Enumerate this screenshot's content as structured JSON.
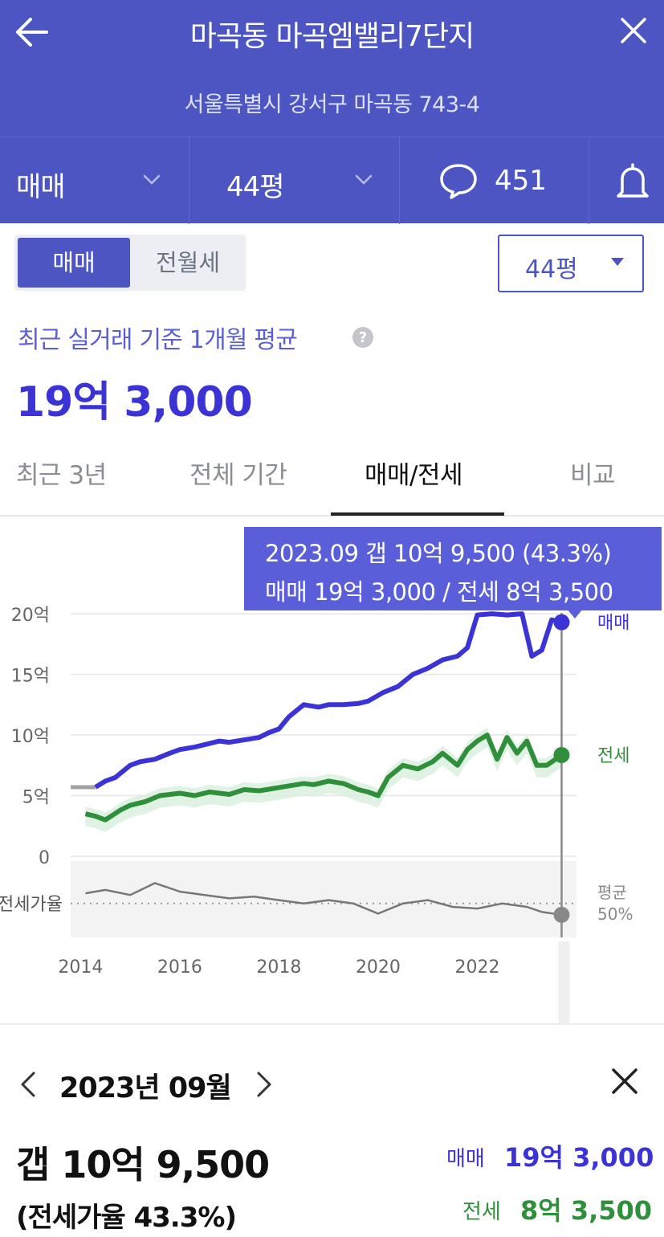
{
  "header": {
    "title": "마곡동 마곡엠밸리7단지",
    "address": "서울특별시 강서구 마곡동 743-4",
    "deal_type": "매매",
    "size": "44평",
    "comment_count": "451"
  },
  "controls": {
    "segment_active": "매매",
    "segment_inactive": "전월세",
    "size_select": "44평"
  },
  "summary": {
    "basis_label": "최근 실거래 기준 1개월 평균",
    "price": "19억 3,000"
  },
  "tabs": [
    {
      "label": "최근 3년",
      "active": false
    },
    {
      "label": "전체 기간",
      "active": false
    },
    {
      "label": "매매/전세",
      "active": true
    },
    {
      "label": "비교",
      "active": false
    }
  ],
  "tooltip": {
    "line1": "2023.09  갭 10억 9,500 (43.3%)",
    "line2": "매매 19억 3,000 / 전세 8억 3,500"
  },
  "colors": {
    "brand": "#4c55c2",
    "sale": "#3c33d6",
    "jeonse": "#2f8f3a",
    "ratio": "#777777"
  },
  "chart_data": {
    "type": "line",
    "ylabel": "",
    "y_ticks": [
      "20억",
      "15억",
      "10억",
      "5억",
      "0"
    ],
    "y_tick_values": [
      20,
      15,
      10,
      5,
      0
    ],
    "ylim": [
      0,
      21
    ],
    "x_ticks": [
      "2014",
      "2016",
      "2018",
      "2020",
      "2022"
    ],
    "x_tick_values": [
      2014,
      2016,
      2018,
      2020,
      2022
    ],
    "xlim": [
      2013.8,
      2024
    ],
    "series": [
      {
        "name": "매매",
        "unit": "억",
        "x": [
          2014.3,
          2014.5,
          2014.7,
          2015.0,
          2015.2,
          2015.5,
          2015.8,
          2016.0,
          2016.3,
          2016.5,
          2016.8,
          2017.0,
          2017.3,
          2017.6,
          2017.8,
          2018.0,
          2018.2,
          2018.5,
          2018.8,
          2019.0,
          2019.3,
          2019.6,
          2019.8,
          2020.1,
          2020.4,
          2020.7,
          2021.0,
          2021.3,
          2021.6,
          2021.8,
          2022.0,
          2022.3,
          2022.6,
          2022.9,
          2023.1,
          2023.3,
          2023.5,
          2023.7
        ],
        "values": [
          5.7,
          6.2,
          6.5,
          7.5,
          7.8,
          8.0,
          8.5,
          8.8,
          9.0,
          9.2,
          9.5,
          9.4,
          9.6,
          9.8,
          10.2,
          10.5,
          11.5,
          12.5,
          12.3,
          12.5,
          12.5,
          12.6,
          12.8,
          13.5,
          14.0,
          15.0,
          15.5,
          16.2,
          16.5,
          17.2,
          19.9,
          20.0,
          19.9,
          20.0,
          16.5,
          17.0,
          19.5,
          19.3
        ]
      },
      {
        "name": "전세",
        "unit": "억",
        "x": [
          2014.1,
          2014.3,
          2014.5,
          2014.8,
          2015.0,
          2015.3,
          2015.6,
          2016.0,
          2016.3,
          2016.6,
          2017.0,
          2017.3,
          2017.6,
          2017.9,
          2018.2,
          2018.5,
          2018.7,
          2019.0,
          2019.3,
          2019.6,
          2019.8,
          2020.0,
          2020.2,
          2020.5,
          2020.8,
          2021.1,
          2021.3,
          2021.6,
          2021.8,
          2022.0,
          2022.2,
          2022.4,
          2022.6,
          2022.8,
          2023.0,
          2023.2,
          2023.4,
          2023.7
        ],
        "values": [
          3.5,
          3.3,
          3.0,
          3.8,
          4.2,
          4.5,
          5.0,
          5.2,
          5.0,
          5.3,
          5.1,
          5.5,
          5.4,
          5.6,
          5.8,
          6.0,
          5.9,
          6.2,
          6.0,
          5.5,
          5.3,
          5.0,
          6.5,
          7.5,
          7.2,
          7.8,
          8.5,
          7.5,
          8.8,
          9.5,
          10.0,
          8.0,
          9.8,
          8.5,
          9.5,
          7.5,
          7.5,
          8.35
        ]
      },
      {
        "name": "전세가율",
        "unit": "%",
        "x": [
          2014.1,
          2014.5,
          2015.0,
          2015.5,
          2016.0,
          2016.5,
          2017.0,
          2017.5,
          2018.0,
          2018.5,
          2019.0,
          2019.5,
          2020.0,
          2020.5,
          2021.0,
          2021.5,
          2022.0,
          2022.5,
          2023.0,
          2023.3,
          2023.7
        ],
        "values": [
          56,
          58,
          55,
          62,
          57,
          55,
          53,
          54,
          52,
          50,
          52,
          50,
          44,
          50,
          52,
          48,
          47,
          50,
          48,
          45,
          43.3
        ]
      }
    ],
    "end_labels": [
      "매매",
      "전세"
    ],
    "ratio_axis_label": "전세가율",
    "ratio_avg_label": "평균",
    "ratio_avg_value": "50%",
    "ratio_avg": 50,
    "ratio_ylim": [
      30,
      75
    ],
    "selected_x": 2023.7
  },
  "detail": {
    "month": "2023년 09월",
    "gap": "갭 10억 9,500",
    "ratio": "(전세가율 43.3%)",
    "sale_label": "매매",
    "sale_value": "19억 3,000",
    "jeonse_label": "전세",
    "jeonse_value": "8억 3,500"
  }
}
